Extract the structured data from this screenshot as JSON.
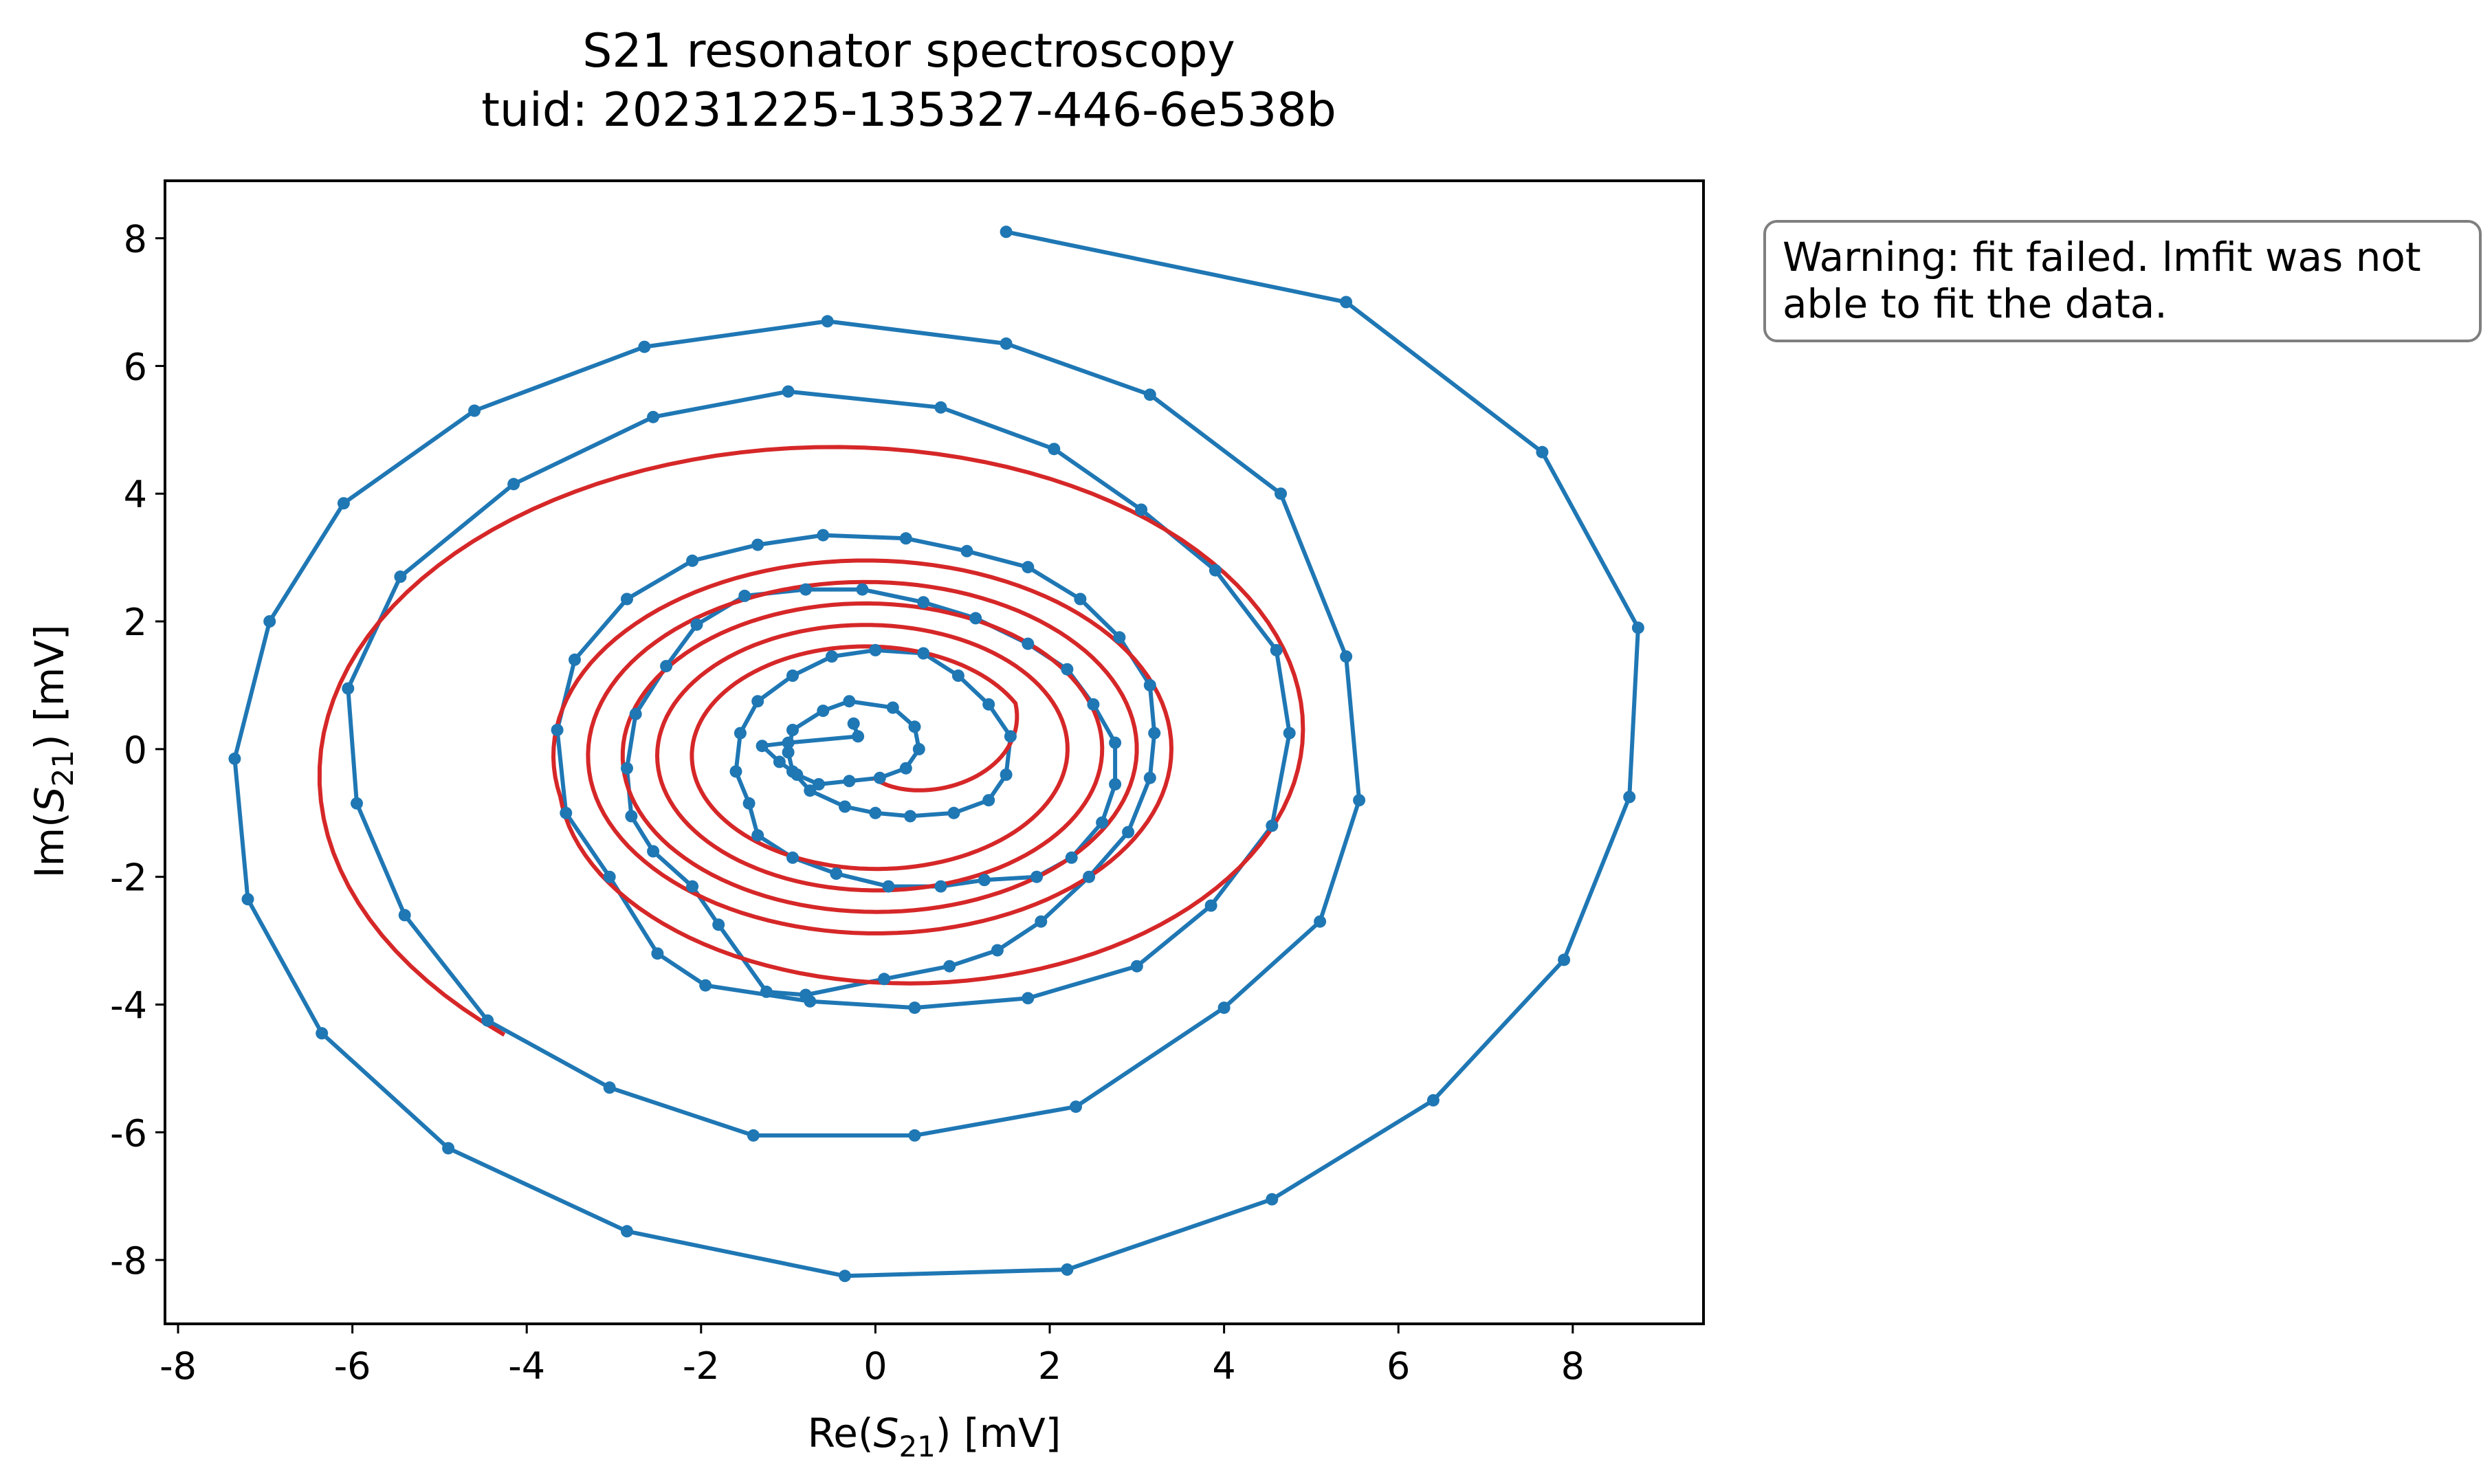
{
  "chart_data": {
    "type": "line",
    "title": "S21 resonator spectroscopy",
    "subtitle": "tuid: 20231225-135327-446-6e538b",
    "xlabel": {
      "prefix": "Re(",
      "symbol": "S",
      "sub": "21",
      "suffix": ") [mV]"
    },
    "ylabel": {
      "prefix": "Im(",
      "symbol": "S",
      "sub": "21",
      "suffix": ") [mV]"
    },
    "xlim": [
      -8.15,
      9.5
    ],
    "ylim": [
      -9.0,
      8.9
    ],
    "xticks": [
      -8,
      -6,
      -4,
      -2,
      0,
      2,
      4,
      6,
      8
    ],
    "yticks": [
      -8,
      -6,
      -4,
      -2,
      0,
      2,
      4,
      6,
      8
    ],
    "grid": false,
    "colors": {
      "data": "#1f77b4",
      "fit": "#d62728",
      "axes": "#000000",
      "box_border": "#7f7f7f"
    },
    "annotation": {
      "lines": [
        "Warning: fit failed. lmfit was not",
        "able to fit the data."
      ]
    },
    "series": [
      {
        "kind": "data",
        "markers": true,
        "points": [
          [
            1.5,
            8.1
          ],
          [
            5.4,
            7.0
          ],
          [
            7.65,
            4.65
          ],
          [
            8.75,
            1.9
          ],
          [
            8.65,
            -0.75
          ],
          [
            7.9,
            -3.3
          ],
          [
            6.4,
            -5.5
          ],
          [
            4.55,
            -7.05
          ],
          [
            2.2,
            -8.15
          ],
          [
            -0.35,
            -8.25
          ],
          [
            -2.85,
            -7.55
          ],
          [
            -4.9,
            -6.25
          ],
          [
            -6.35,
            -4.45
          ],
          [
            -7.2,
            -2.35
          ],
          [
            -7.35,
            -0.15
          ],
          [
            -6.95,
            2.0
          ],
          [
            -6.1,
            3.85
          ],
          [
            -4.6,
            5.3
          ],
          [
            -2.65,
            6.3
          ],
          [
            -0.55,
            6.7
          ],
          [
            1.5,
            6.35
          ],
          [
            3.15,
            5.55
          ],
          [
            4.65,
            4.0
          ],
          [
            5.4,
            1.45
          ],
          [
            5.55,
            -0.8
          ],
          [
            5.1,
            -2.7
          ],
          [
            4.0,
            -4.05
          ],
          [
            2.3,
            -5.6
          ],
          [
            0.45,
            -6.05
          ],
          [
            -1.4,
            -6.05
          ],
          [
            -3.05,
            -5.3
          ],
          [
            -4.45,
            -4.25
          ],
          [
            -5.4,
            -2.6
          ],
          [
            -5.95,
            -0.85
          ],
          [
            -6.05,
            0.95
          ],
          [
            -5.45,
            2.7
          ],
          [
            -4.15,
            4.15
          ],
          [
            -2.55,
            5.2
          ],
          [
            -1.0,
            5.6
          ],
          [
            0.75,
            5.35
          ],
          [
            2.05,
            4.7
          ],
          [
            3.05,
            3.75
          ],
          [
            3.9,
            2.8
          ],
          [
            4.6,
            1.55
          ],
          [
            4.75,
            0.25
          ],
          [
            4.55,
            -1.2
          ],
          [
            3.85,
            -2.45
          ],
          [
            3.0,
            -3.4
          ],
          [
            1.75,
            -3.9
          ],
          [
            0.45,
            -4.05
          ],
          [
            -0.75,
            -3.95
          ],
          [
            -1.95,
            -3.7
          ],
          [
            -2.5,
            -3.2
          ],
          [
            -3.05,
            -2.0
          ],
          [
            -3.55,
            -1.0
          ],
          [
            -3.65,
            0.3
          ],
          [
            -3.45,
            1.4
          ],
          [
            -2.85,
            2.35
          ],
          [
            -2.1,
            2.95
          ],
          [
            -1.35,
            3.2
          ],
          [
            -0.6,
            3.35
          ],
          [
            0.35,
            3.3
          ],
          [
            1.05,
            3.1
          ],
          [
            1.75,
            2.85
          ],
          [
            2.35,
            2.35
          ],
          [
            2.8,
            1.75
          ],
          [
            3.15,
            1.0
          ],
          [
            3.2,
            0.25
          ],
          [
            3.15,
            -0.45
          ],
          [
            2.9,
            -1.3
          ],
          [
            2.45,
            -2.0
          ],
          [
            1.9,
            -2.7
          ],
          [
            1.4,
            -3.15
          ],
          [
            0.85,
            -3.4
          ],
          [
            0.1,
            -3.6
          ],
          [
            -0.8,
            -3.85
          ],
          [
            -1.25,
            -3.8
          ],
          [
            -1.8,
            -2.75
          ],
          [
            -2.1,
            -2.15
          ],
          [
            -2.55,
            -1.6
          ],
          [
            -2.8,
            -1.05
          ],
          [
            -2.85,
            -0.3
          ],
          [
            -2.75,
            0.55
          ],
          [
            -2.4,
            1.3
          ],
          [
            -2.05,
            1.95
          ],
          [
            -1.5,
            2.4
          ],
          [
            -0.8,
            2.5
          ],
          [
            -0.15,
            2.5
          ],
          [
            0.55,
            2.3
          ],
          [
            1.15,
            2.05
          ],
          [
            1.75,
            1.65
          ],
          [
            2.2,
            1.25
          ],
          [
            2.5,
            0.7
          ],
          [
            2.75,
            0.1
          ],
          [
            2.75,
            -0.55
          ],
          [
            2.6,
            -1.15
          ],
          [
            2.25,
            -1.7
          ],
          [
            1.85,
            -2.0
          ],
          [
            1.25,
            -2.05
          ],
          [
            0.75,
            -2.15
          ],
          [
            0.15,
            -2.15
          ],
          [
            -0.45,
            -1.95
          ],
          [
            -0.95,
            -1.7
          ],
          [
            -1.35,
            -1.35
          ],
          [
            -1.45,
            -0.85
          ],
          [
            -1.6,
            -0.35
          ],
          [
            -1.55,
            0.25
          ],
          [
            -1.35,
            0.75
          ],
          [
            -0.95,
            1.15
          ],
          [
            -0.5,
            1.45
          ],
          [
            0.0,
            1.55
          ],
          [
            0.55,
            1.5
          ],
          [
            0.95,
            1.15
          ],
          [
            1.3,
            0.7
          ],
          [
            1.55,
            0.2
          ],
          [
            1.5,
            -0.4
          ],
          [
            1.3,
            -0.8
          ],
          [
            0.9,
            -1.0
          ],
          [
            0.4,
            -1.05
          ],
          [
            0.0,
            -1.0
          ],
          [
            -0.35,
            -0.9
          ],
          [
            -0.75,
            -0.65
          ],
          [
            -0.95,
            -0.35
          ],
          [
            -1.0,
            -0.05
          ],
          [
            -0.95,
            0.3
          ],
          [
            -0.6,
            0.6
          ],
          [
            -0.3,
            0.75
          ],
          [
            0.2,
            0.65
          ],
          [
            0.45,
            0.35
          ],
          [
            0.5,
            0.0
          ],
          [
            0.35,
            -0.3
          ],
          [
            0.05,
            -0.45
          ],
          [
            -0.3,
            -0.5
          ],
          [
            -0.65,
            -0.55
          ],
          [
            -0.9,
            -0.4
          ],
          [
            -1.1,
            -0.2
          ],
          [
            -1.3,
            0.05
          ],
          [
            -1.0,
            0.1
          ],
          [
            -0.2,
            0.2
          ],
          [
            -0.25,
            0.4
          ]
        ]
      },
      {
        "kind": "fit",
        "markers": false,
        "note": "model curve"
      }
    ]
  }
}
